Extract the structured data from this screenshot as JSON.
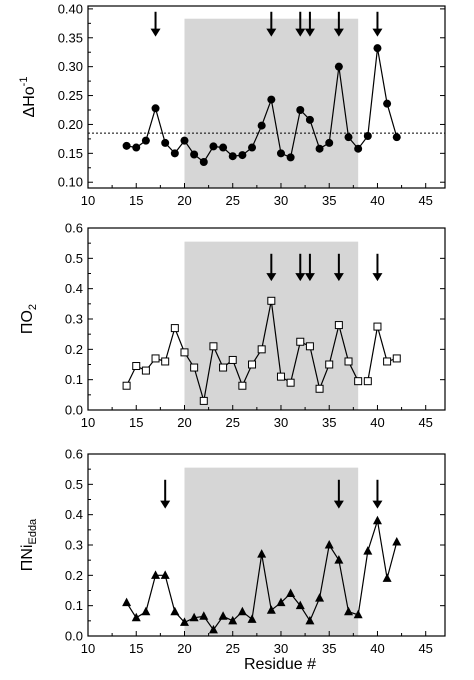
{
  "chart_data": [
    {
      "type": "scatter",
      "ylabel_main": "ΔHo",
      "ylabel_sup": "-1",
      "ylabel_sub": "",
      "xlabel": "",
      "xlim": [
        10,
        47
      ],
      "ylim": [
        0.09,
        0.405
      ],
      "xticks": [
        10,
        15,
        20,
        25,
        30,
        35,
        40,
        45
      ],
      "yticks": [
        0.1,
        0.15,
        0.2,
        0.25,
        0.3,
        0.35,
        0.4
      ],
      "ytick_format": 2,
      "shaded_region": {
        "x": [
          20,
          38
        ],
        "y_top": 0.383
      },
      "reference_line": 0.185,
      "marker": "circle",
      "series": [
        {
          "x": [
            14,
            15,
            16,
            17,
            18,
            19,
            20,
            21,
            22,
            23,
            24,
            25,
            26,
            27,
            28,
            29,
            30,
            31,
            32,
            33,
            34,
            35,
            36,
            37,
            38,
            39,
            40,
            41,
            42
          ],
          "y": [
            0.163,
            0.16,
            0.172,
            0.228,
            0.168,
            0.15,
            0.172,
            0.148,
            0.135,
            0.162,
            0.16,
            0.145,
            0.147,
            0.16,
            0.198,
            0.243,
            0.15,
            0.143,
            0.225,
            0.208,
            0.158,
            0.168,
            0.3,
            0.178,
            0.158,
            0.18,
            0.332,
            0.236,
            0.178
          ]
        }
      ],
      "arrows": [
        17,
        29,
        32,
        33,
        36,
        40
      ],
      "arrow_range": [
        0.352,
        0.395
      ]
    },
    {
      "type": "line",
      "ylabel_main": "ΠO",
      "ylabel_sup": "",
      "ylabel_sub": "2",
      "xlabel": "",
      "xlim": [
        10,
        47
      ],
      "ylim": [
        0,
        0.6
      ],
      "xticks": [
        10,
        15,
        20,
        25,
        30,
        35,
        40,
        45
      ],
      "yticks": [
        0.0,
        0.1,
        0.2,
        0.3,
        0.4,
        0.5,
        0.6
      ],
      "ytick_format": 1,
      "shaded_region": {
        "x": [
          20,
          38
        ],
        "y_top": 0.555
      },
      "marker": "square",
      "series": [
        {
          "x": [
            14,
            15,
            16,
            17,
            18,
            19,
            20,
            21,
            22,
            23,
            24,
            25,
            26,
            27,
            28,
            29,
            30,
            31,
            32,
            33,
            34,
            35,
            36,
            37,
            38
          ],
          "y": [
            0.08,
            0.145,
            0.13,
            0.17,
            0.16,
            0.27,
            0.19,
            0.14,
            0.03,
            0.21,
            0.14,
            0.165,
            0.08,
            0.15,
            0.2,
            0.36,
            0.11,
            0.09,
            0.225,
            0.21,
            0.07,
            0.15,
            0.28,
            0.16,
            0.095
          ]
        },
        {
          "x": [
            39,
            40,
            41,
            42
          ],
          "y": [
            0.095,
            0.275,
            0.16,
            0.17
          ]
        }
      ],
      "arrows": [
        29,
        32,
        33,
        36,
        40
      ],
      "arrow_range": [
        0.425,
        0.515
      ]
    },
    {
      "type": "line",
      "ylabel_main": "ΠNi",
      "ylabel_sup": "",
      "ylabel_sub": "Edda",
      "xlabel": "Residue #",
      "xlim": [
        10,
        47
      ],
      "ylim": [
        0,
        0.6
      ],
      "xticks": [
        10,
        15,
        20,
        25,
        30,
        35,
        40,
        45
      ],
      "yticks": [
        0.0,
        0.1,
        0.2,
        0.3,
        0.4,
        0.5,
        0.6
      ],
      "ytick_format": 1,
      "shaded_region": {
        "x": [
          20,
          38
        ],
        "y_top": 0.555
      },
      "marker": "triangle",
      "series": [
        {
          "x": [
            14,
            15,
            16,
            17,
            18,
            19,
            20,
            21,
            22,
            23,
            24,
            25,
            26,
            27,
            28,
            29,
            30,
            31,
            32,
            33,
            34,
            35,
            36,
            37,
            38,
            39,
            40,
            41,
            42
          ],
          "y": [
            0.11,
            0.06,
            0.08,
            0.2,
            0.2,
            0.08,
            0.045,
            0.06,
            0.065,
            0.02,
            0.065,
            0.05,
            0.08,
            0.055,
            0.27,
            0.085,
            0.11,
            0.14,
            0.1,
            0.05,
            0.125,
            0.3,
            0.25,
            0.08,
            0.07,
            0.28,
            0.38,
            0.19,
            0.31
          ]
        }
      ],
      "arrows": [
        18,
        36,
        40
      ],
      "arrow_range": [
        0.42,
        0.515
      ]
    }
  ]
}
